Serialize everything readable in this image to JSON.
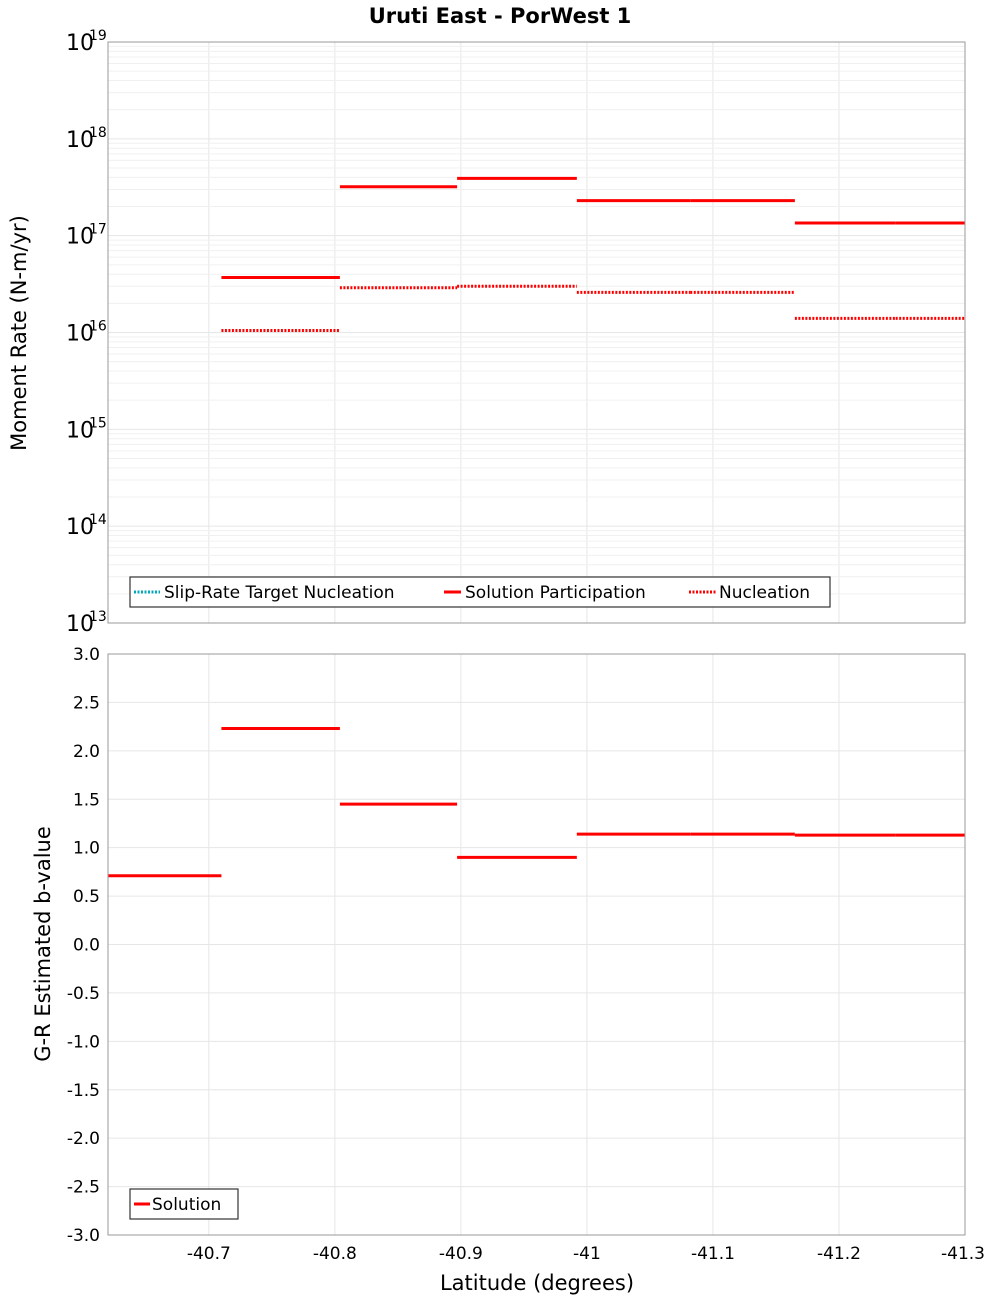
{
  "title": "Uruti East - PorWest 1",
  "colors": {
    "solution": "#ff0000",
    "nucleation": "#ff0000",
    "target": "#00aabb"
  },
  "chart_data": [
    {
      "type": "line",
      "panel": "top",
      "ylabel": "Moment Rate (N-m/yr)",
      "yscale": "log",
      "ylim": [
        10000000000000.0,
        1e+19
      ],
      "y_tick_base": "10",
      "y_tick_exponents": [
        "13",
        "14",
        "15",
        "16",
        "17",
        "18",
        "19"
      ],
      "xlim": [
        -40.62,
        -41.3
      ],
      "series": [
        {
          "name": "Slip-Rate Target Nucleation",
          "style": "dotted",
          "color": "#00aabb",
          "segments": []
        },
        {
          "name": "Solution Participation",
          "style": "solid",
          "color": "#ff0000",
          "segments": [
            {
              "x0": -40.71,
              "x1": -40.804,
              "y": 3.7e+16
            },
            {
              "x0": -40.804,
              "x1": -40.897,
              "y": 3.2e+17
            },
            {
              "x0": -40.897,
              "x1": -40.992,
              "y": 3.9e+17
            },
            {
              "x0": -40.992,
              "x1": -41.082,
              "y": 2.3e+17
            },
            {
              "x0": -41.082,
              "x1": -41.165,
              "y": 2.3e+17
            },
            {
              "x0": -41.165,
              "x1": -41.245,
              "y": 1.35e+17
            },
            {
              "x0": -41.245,
              "x1": -41.3,
              "y": 1.35e+17
            }
          ]
        },
        {
          "name": "Nucleation",
          "style": "dotted",
          "color": "#ff0000",
          "segments": [
            {
              "x0": -40.71,
              "x1": -40.804,
              "y": 1.05e+16
            },
            {
              "x0": -40.804,
              "x1": -40.897,
              "y": 2.9e+16
            },
            {
              "x0": -40.897,
              "x1": -40.992,
              "y": 3e+16
            },
            {
              "x0": -40.992,
              "x1": -41.082,
              "y": 2.6e+16
            },
            {
              "x0": -41.082,
              "x1": -41.165,
              "y": 2.6e+16
            },
            {
              "x0": -41.165,
              "x1": -41.245,
              "y": 1.4e+16
            },
            {
              "x0": -41.245,
              "x1": -41.3,
              "y": 1.4e+16
            }
          ]
        }
      ]
    },
    {
      "type": "line",
      "panel": "bottom",
      "ylabel": "G-R Estimated b-value",
      "xlabel": "Latitude (degrees)",
      "ylim": [
        -3.0,
        3.0
      ],
      "yticks": [
        "3.0",
        "2.5",
        "2.0",
        "1.5",
        "1.0",
        "0.5",
        "0.0",
        "-0.5",
        "-1.0",
        "-1.5",
        "-2.0",
        "-2.5",
        "-3.0"
      ],
      "xlim": [
        -40.62,
        -41.3
      ],
      "xticks": [
        "-40.7",
        "-40.8",
        "-40.9",
        "-41",
        "-41.1",
        "-41.2",
        "-41.3"
      ],
      "series": [
        {
          "name": "Solution",
          "style": "solid",
          "color": "#ff0000",
          "segments": [
            {
              "x0": -40.62,
              "x1": -40.71,
              "y": 0.71
            },
            {
              "x0": -40.71,
              "x1": -40.804,
              "y": 2.23
            },
            {
              "x0": -40.804,
              "x1": -40.897,
              "y": 1.45
            },
            {
              "x0": -40.897,
              "x1": -40.992,
              "y": 0.9
            },
            {
              "x0": -40.992,
              "x1": -41.082,
              "y": 1.14
            },
            {
              "x0": -41.082,
              "x1": -41.165,
              "y": 1.14
            },
            {
              "x0": -41.165,
              "x1": -41.245,
              "y": 1.13
            },
            {
              "x0": -41.245,
              "x1": -41.3,
              "y": 1.13
            }
          ]
        }
      ]
    }
  ]
}
